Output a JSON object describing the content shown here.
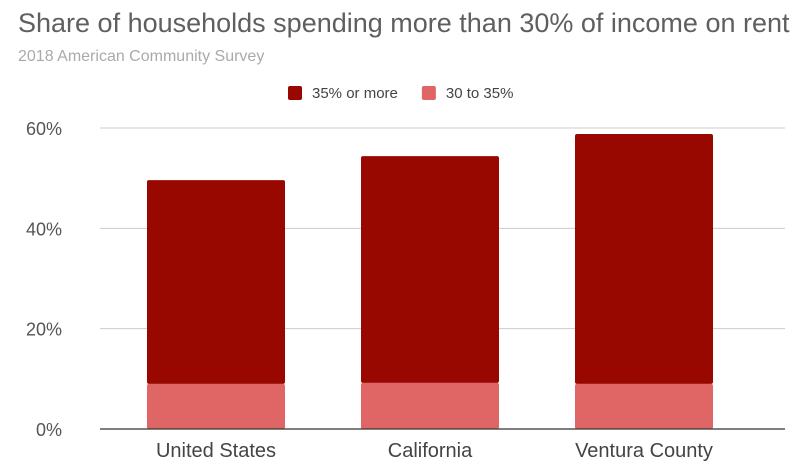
{
  "chart_data": {
    "type": "bar",
    "stacked": true,
    "title": "Share of households spending more than 30% of income on rent",
    "subtitle": "2018 American Community Survey",
    "categories": [
      "United States",
      "California",
      "Ventura County"
    ],
    "series": [
      {
        "name": "30 to 35%",
        "values": [
          9.0,
          9.2,
          9.0
        ],
        "color": "#e06666"
      },
      {
        "name": "35% or more",
        "values": [
          40.6,
          45.2,
          49.8
        ],
        "color": "#990800"
      }
    ],
    "legend_order": [
      "35% or more",
      "30 to 35%"
    ],
    "legend_position": "top",
    "ylim": [
      0,
      60
    ],
    "yticks": [
      0,
      20,
      40,
      60
    ],
    "ytick_labels": [
      "0%",
      "20%",
      "40%",
      "60%"
    ],
    "grid": true,
    "xlabel": "",
    "ylabel": ""
  }
}
